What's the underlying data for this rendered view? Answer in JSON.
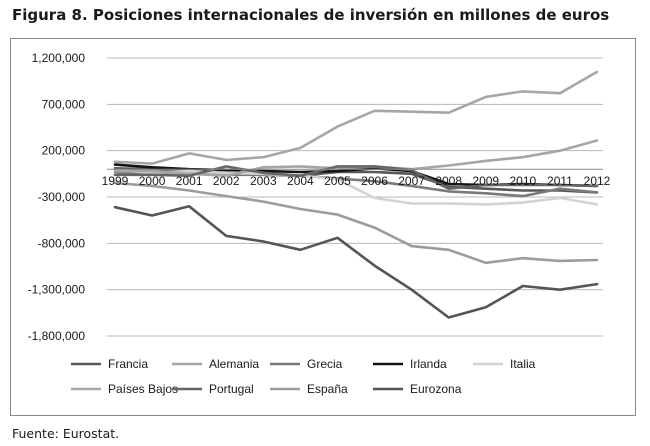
{
  "figure": {
    "title": "Figura 8. Posiciones internacionales de inversión en millones de euros",
    "source": "Fuente: Eurostat."
  },
  "chart_data": {
    "type": "line",
    "title": "Figura 8. Posiciones internacionales de inversión en millones de euros",
    "xlabel": "",
    "ylabel": "",
    "ylim": [
      -1800000,
      1200000
    ],
    "yticks": [
      1200000,
      700000,
      200000,
      -300000,
      -800000,
      -1300000,
      -1800000
    ],
    "ytick_labels": [
      "1,200,000",
      "700,000",
      "200,000",
      "-300,000",
      "-800,000",
      "-1,300,000",
      "-1,800,000"
    ],
    "grid": "horizontal",
    "legend_position": "bottom",
    "categories": [
      "1999",
      "2000",
      "2001",
      "2002",
      "2003",
      "2004",
      "2005",
      "2006",
      "2007",
      "2008",
      "2009",
      "2010",
      "2011",
      "2012"
    ],
    "series": [
      {
        "name": "Francia",
        "color": "#585858",
        "values": [
          10000,
          0,
          -20000,
          -40000,
          -60000,
          -70000,
          -30000,
          -30000,
          -50000,
          -190000,
          -210000,
          -230000,
          -230000,
          -250000
        ]
      },
      {
        "name": "Alemania",
        "color": "#a6a6a6",
        "values": [
          80000,
          60000,
          170000,
          100000,
          130000,
          230000,
          460000,
          630000,
          620000,
          610000,
          780000,
          840000,
          820000,
          1050000
        ]
      },
      {
        "name": "Grecia",
        "color": "#7a7a7a",
        "values": [
          -30000,
          -40000,
          -30000,
          -60000,
          -60000,
          -70000,
          -100000,
          -130000,
          -180000,
          -240000,
          -260000,
          -290000,
          -210000,
          -250000
        ]
      },
      {
        "name": "Irlanda",
        "color": "#141414",
        "values": [
          50000,
          20000,
          0,
          -10000,
          -20000,
          -30000,
          -20000,
          10000,
          -20000,
          -160000,
          -170000,
          -160000,
          -170000,
          -180000
        ]
      },
      {
        "name": "Italia",
        "color": "#d3d3d3",
        "values": [
          -10000,
          -40000,
          -20000,
          -40000,
          -50000,
          -70000,
          -110000,
          -310000,
          -370000,
          -370000,
          -380000,
          -360000,
          -310000,
          -380000
        ]
      },
      {
        "name": "Países Bajos",
        "color": "#a6a6a6",
        "values": [
          -20000,
          -20000,
          -50000,
          -70000,
          20000,
          30000,
          10000,
          30000,
          0,
          40000,
          90000,
          130000,
          200000,
          310000
        ]
      },
      {
        "name": "Portugal",
        "color": "#666666",
        "values": [
          -60000,
          -60000,
          -70000,
          30000,
          -40000,
          -70000,
          30000,
          30000,
          -10000,
          -210000,
          -170000,
          -170000,
          -170000,
          -180000
        ]
      },
      {
        "name": "España",
        "color": "#9c9c9c",
        "values": [
          -150000,
          -180000,
          -230000,
          -290000,
          -350000,
          -430000,
          -490000,
          -630000,
          -830000,
          -870000,
          -1010000,
          -960000,
          -990000,
          -980000
        ]
      },
      {
        "name": "Eurozona",
        "color": "#555555",
        "values": [
          -410000,
          -500000,
          -400000,
          -720000,
          -780000,
          -870000,
          -740000,
          -1040000,
          -1300000,
          -1600000,
          -1490000,
          -1260000,
          -1300000,
          -1240000
        ]
      }
    ]
  }
}
